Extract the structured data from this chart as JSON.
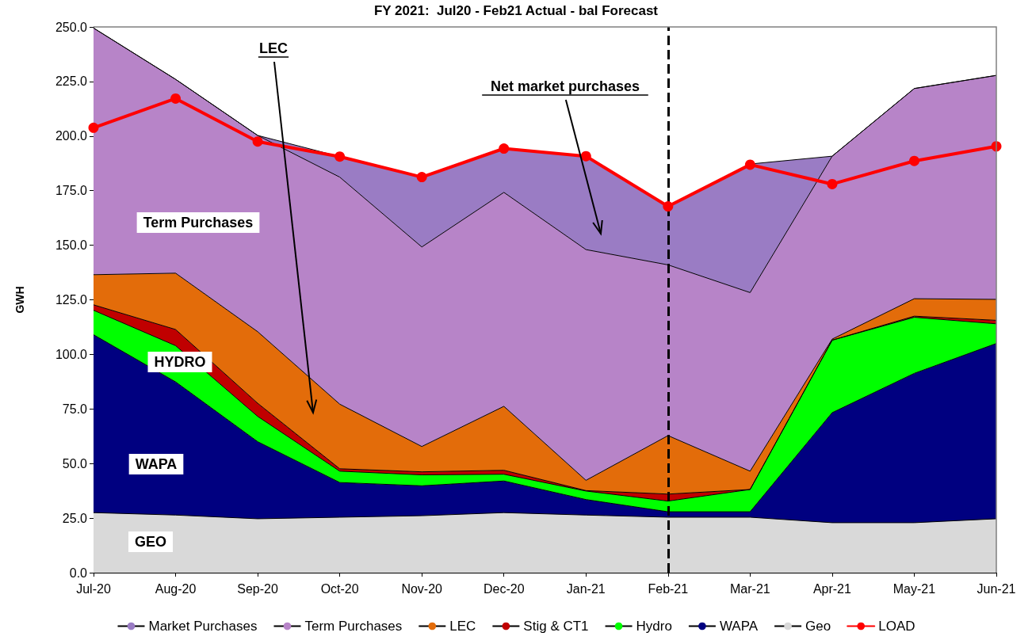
{
  "chart_data": {
    "type": "area",
    "stacked": true,
    "title": "FY 2021:  Jul20 - Feb21 Actual - bal Forecast",
    "ylabel": "GWH",
    "categories": [
      "Jul-20",
      "Aug-20",
      "Sep-20",
      "Oct-20",
      "Nov-20",
      "Dec-20",
      "Jan-21",
      "Feb-21",
      "Mar-21",
      "Apr-21",
      "May-21",
      "Jun-21"
    ],
    "series": [
      {
        "name": "Geo",
        "color": "#d9d9d9",
        "values": [
          27.5,
          26.4,
          24.7,
          25.4,
          26.1,
          27.5,
          26.4,
          25.4,
          25.4,
          22.9,
          22.9,
          24.7
        ]
      },
      {
        "name": "WAPA",
        "color": "#000080",
        "values": [
          81.5,
          61,
          35.3,
          15.9,
          13.7,
          14.5,
          7.1,
          2.5,
          2.5,
          50.4,
          68.4,
          80.3
        ]
      },
      {
        "name": "Hydro",
        "color": "#00ff00",
        "values": [
          11.2,
          16.6,
          11.6,
          5.2,
          5,
          3.1,
          3.9,
          4.9,
          10.2,
          33.2,
          25.7,
          9
        ]
      },
      {
        "name": "Stig & CT1",
        "color": "#c00000",
        "values": [
          2.5,
          7.4,
          6,
          1.1,
          1.4,
          1.8,
          0.2,
          3.2,
          0,
          0,
          0.5,
          1.6
        ]
      },
      {
        "name": "LEC",
        "color": "#e36c0a",
        "values": [
          13.8,
          25.8,
          32.8,
          29.6,
          11.6,
          29.3,
          4.7,
          26.8,
          8.4,
          0.5,
          8,
          9.6
        ]
      },
      {
        "name": "Term Purchases",
        "color": "#b784c8",
        "values": [
          113,
          88.8,
          89.9,
          104,
          91.4,
          98,
          105.7,
          78.2,
          81.8,
          83.8,
          96.3,
          102.6
        ]
      },
      {
        "name": "Market Purchases",
        "color": "#9a7cc4",
        "values": [
          0,
          0,
          0,
          9.4,
          32,
          20.1,
          42.8,
          26.8,
          58.9,
          0,
          0,
          0
        ]
      },
      {
        "name": "LOAD",
        "type": "line",
        "marker": "circle",
        "color": "#ff0000",
        "values": [
          203.8,
          217.2,
          197.5,
          190.6,
          181.2,
          194.3,
          190.8,
          167.8,
          186.9,
          178,
          188.6,
          195.3
        ]
      }
    ],
    "ylim": [
      0,
      250
    ],
    "yticks": [
      {
        "value": 0,
        "label": "0.0"
      },
      {
        "value": 25,
        "label": "25.0"
      },
      {
        "value": 50,
        "label": "50.0"
      },
      {
        "value": 75,
        "label": "75.0"
      },
      {
        "value": 100,
        "label": "100.0"
      },
      {
        "value": 125,
        "label": "125.0"
      },
      {
        "value": 150,
        "label": "150.0"
      },
      {
        "value": 175,
        "label": "175.0"
      },
      {
        "value": 200,
        "label": "200.0"
      },
      {
        "value": 225,
        "label": "225.0"
      },
      {
        "value": 250,
        "label": "250.0"
      }
    ],
    "ref_lines": [
      {
        "axis": "x",
        "value": "Feb-21",
        "color": "#000000",
        "line_style": "dashed"
      }
    ],
    "annotations": [
      "LEC",
      "Net market purchases",
      "Term Purchases",
      "HYDRO",
      "WAPA",
      "GEO"
    ],
    "line_style": "solid",
    "grid": false,
    "legend": "bottom"
  }
}
